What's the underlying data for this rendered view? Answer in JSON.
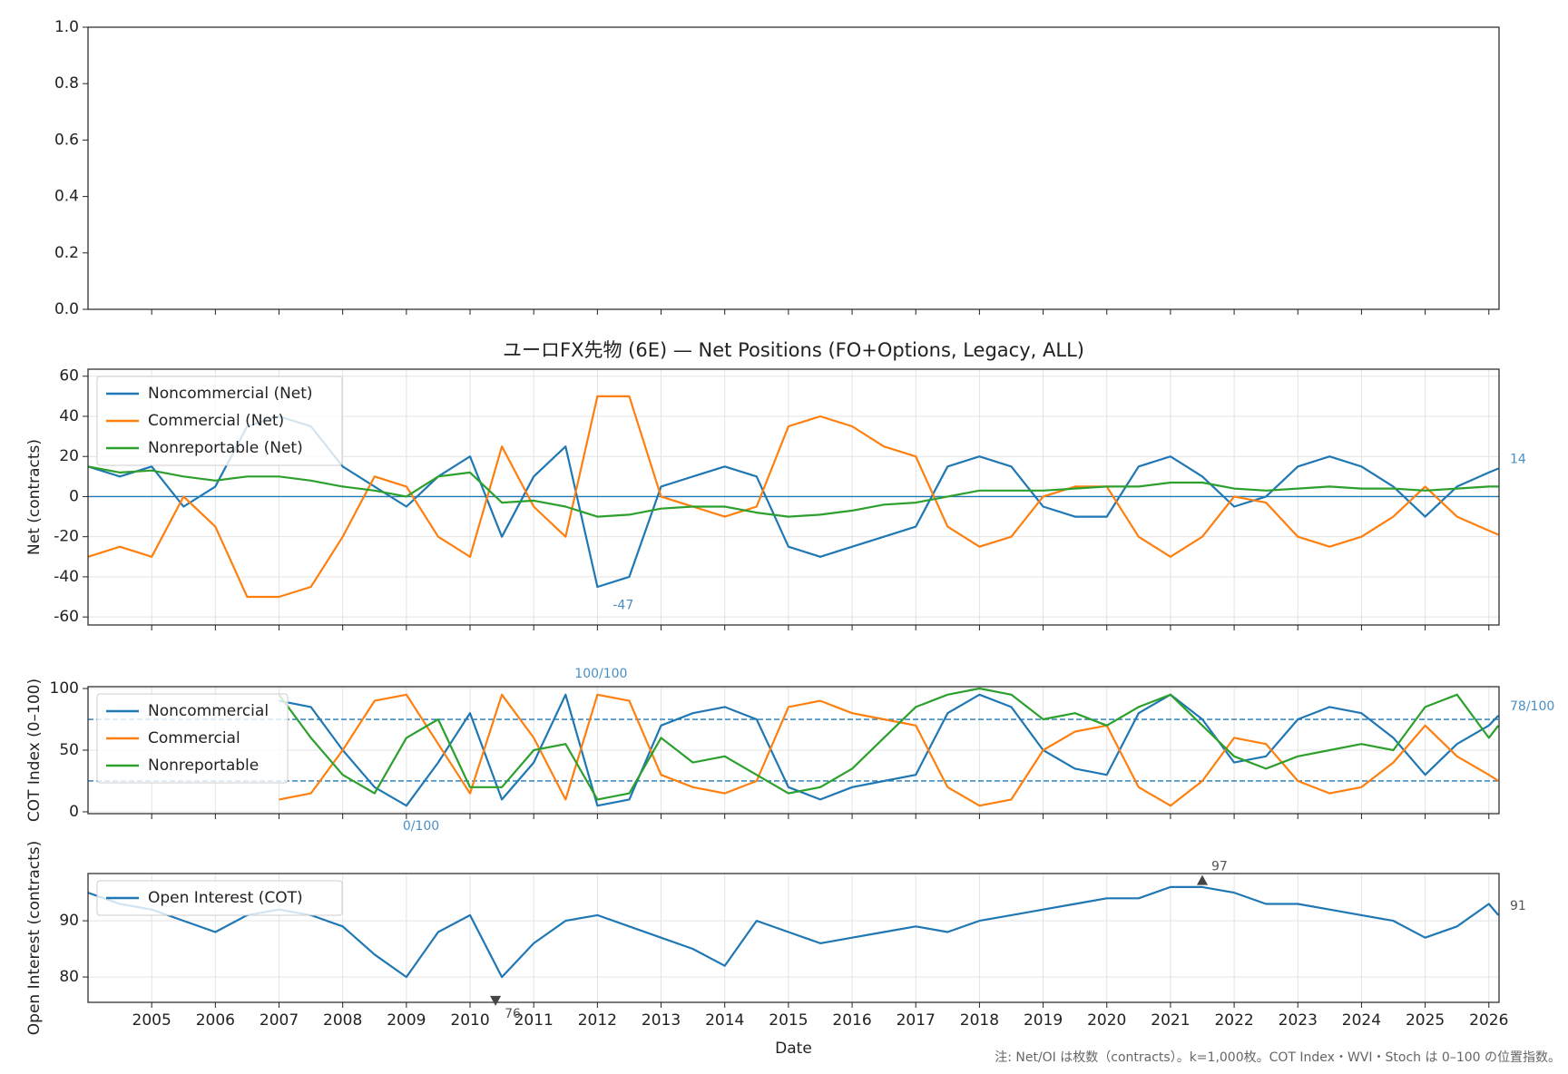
{
  "chart_data": [
    {
      "type": "line",
      "xlim": [
        2004.0,
        2026.16
      ],
      "ylim": [
        0,
        1
      ],
      "yticks": [
        {
          "value": 0,
          "label": "0.0"
        },
        {
          "value": 0.2,
          "label": "0.2"
        },
        {
          "value": 0.4,
          "label": "0.4"
        },
        {
          "value": 0.6,
          "label": "0.6"
        },
        {
          "value": 0.8,
          "label": "0.8"
        },
        {
          "value": 1,
          "label": "1.0"
        }
      ],
      "xticks": [
        2005,
        2006,
        2007,
        2008,
        2009,
        2010,
        2011,
        2012,
        2013,
        2014,
        2015,
        2016,
        2017,
        2018,
        2019,
        2020,
        2021,
        2022,
        2023,
        2024,
        2025,
        2026
      ],
      "grid": false,
      "series": []
    },
    {
      "type": "line",
      "title": "ユーロFX先物 (6E) — Net Positions (FO+Options, Legacy, ALL)",
      "ylabel": "Net (contracts)",
      "xlim": [
        2004.0,
        2026.16
      ],
      "ylim": [
        -64,
        63.5
      ],
      "yticks": [
        -60,
        -40,
        -20,
        0,
        20,
        40,
        60
      ],
      "xticks": [
        2005,
        2006,
        2007,
        2008,
        2009,
        2010,
        2011,
        2012,
        2013,
        2014,
        2015,
        2016,
        2017,
        2018,
        2019,
        2020,
        2021,
        2022,
        2023,
        2024,
        2025,
        2026
      ],
      "grid": true,
      "legend": "upper-left",
      "hlines": [
        {
          "y": 0,
          "style": "solid",
          "color": "#1f77b4"
        }
      ],
      "x": [
        2004.0,
        2004.5,
        2005.0,
        2005.5,
        2006.0,
        2006.5,
        2007.0,
        2007.5,
        2008.0,
        2008.5,
        2009.0,
        2009.5,
        2010.0,
        2010.5,
        2011.0,
        2011.5,
        2012.0,
        2012.5,
        2013.0,
        2013.5,
        2014.0,
        2014.5,
        2015.0,
        2015.5,
        2016.0,
        2016.5,
        2017.0,
        2017.5,
        2018.0,
        2018.5,
        2019.0,
        2019.5,
        2020.0,
        2020.5,
        2021.0,
        2021.5,
        2022.0,
        2022.5,
        2023.0,
        2023.5,
        2024.0,
        2024.5,
        2025.0,
        2025.5,
        2026.0,
        2026.15
      ],
      "series": [
        {
          "name": "Noncommercial (Net)",
          "color": "#1f77b4",
          "values": [
            15,
            10,
            15,
            -5,
            5,
            35,
            40,
            35,
            15,
            5,
            -5,
            10,
            20,
            -20,
            10,
            25,
            -45,
            -40,
            5,
            10,
            15,
            10,
            -25,
            -30,
            -25,
            -20,
            -15,
            15,
            20,
            15,
            -5,
            -10,
            -10,
            15,
            20,
            10,
            -5,
            0,
            15,
            20,
            15,
            5,
            -10,
            5,
            12,
            14
          ]
        },
        {
          "name": "Commercial (Net)",
          "color": "#ff7f0e",
          "values": [
            -30,
            -25,
            -30,
            0,
            -15,
            -50,
            -50,
            -45,
            -20,
            10,
            5,
            -20,
            -30,
            25,
            -5,
            -20,
            50,
            50,
            0,
            -5,
            -10,
            -5,
            35,
            40,
            35,
            25,
            20,
            -15,
            -25,
            -20,
            0,
            5,
            5,
            -20,
            -30,
            -20,
            0,
            -3,
            -20,
            -25,
            -20,
            -10,
            5,
            -10,
            -17,
            -19
          ]
        },
        {
          "name": "Nonreportable (Net)",
          "color": "#2ca02c",
          "values": [
            15,
            12,
            13,
            10,
            8,
            10,
            10,
            8,
            5,
            3,
            0,
            10,
            12,
            -3,
            -2,
            -5,
            -10,
            -9,
            -6,
            -5,
            -5,
            -8,
            -10,
            -9,
            -7,
            -4,
            -3,
            0,
            3,
            3,
            3,
            4,
            5,
            5,
            7,
            7,
            4,
            3,
            4,
            5,
            4,
            4,
            3,
            4,
            5,
            5
          ]
        }
      ],
      "annotations": [
        {
          "text": "14",
          "x": 2026.15,
          "y": 14,
          "color": "#4a8fc4"
        },
        {
          "text": "-47",
          "x": 2012.1,
          "y": -47,
          "color": "#4a8fc4"
        }
      ]
    },
    {
      "type": "line",
      "ylabel": "COT Index (0–100)",
      "xlim": [
        2004.0,
        2026.16
      ],
      "ylim": [
        -1.5,
        101.5
      ],
      "yticks": [
        0,
        50,
        100
      ],
      "xticks": [
        2005,
        2006,
        2007,
        2008,
        2009,
        2010,
        2011,
        2012,
        2013,
        2014,
        2015,
        2016,
        2017,
        2018,
        2019,
        2020,
        2021,
        2022,
        2023,
        2024,
        2025,
        2026
      ],
      "grid": true,
      "legend": "upper-left",
      "hlines": [
        {
          "y": 25,
          "style": "dashed",
          "color": "#1f77b4"
        },
        {
          "y": 75,
          "style": "dashed",
          "color": "#1f77b4"
        }
      ],
      "x": [
        2004.0,
        2004.5,
        2005.0,
        2005.5,
        2006.0,
        2006.5,
        2007.0,
        2007.5,
        2008.0,
        2008.5,
        2009.0,
        2009.5,
        2010.0,
        2010.5,
        2011.0,
        2011.5,
        2012.0,
        2012.5,
        2013.0,
        2013.5,
        2014.0,
        2014.5,
        2015.0,
        2015.5,
        2016.0,
        2016.5,
        2017.0,
        2017.5,
        2018.0,
        2018.5,
        2019.0,
        2019.5,
        2020.0,
        2020.5,
        2021.0,
        2021.5,
        2022.0,
        2022.5,
        2023.0,
        2023.5,
        2024.0,
        2024.5,
        2025.0,
        2025.5,
        2026.0,
        2026.15
      ],
      "series": [
        {
          "name": "Noncommercial",
          "color": "#1f77b4",
          "values": [
            null,
            null,
            null,
            null,
            null,
            null,
            90,
            85,
            50,
            20,
            5,
            40,
            80,
            10,
            40,
            95,
            5,
            10,
            70,
            80,
            85,
            75,
            20,
            10,
            20,
            25,
            30,
            80,
            95,
            85,
            50,
            35,
            30,
            80,
            95,
            75,
            40,
            45,
            75,
            85,
            80,
            60,
            30,
            55,
            70,
            78
          ]
        },
        {
          "name": "Commercial",
          "color": "#ff7f0e",
          "values": [
            null,
            null,
            null,
            null,
            null,
            null,
            10,
            15,
            50,
            90,
            95,
            55,
            15,
            95,
            60,
            10,
            95,
            90,
            30,
            20,
            15,
            25,
            85,
            90,
            80,
            75,
            70,
            20,
            5,
            10,
            50,
            65,
            70,
            20,
            5,
            25,
            60,
            55,
            25,
            15,
            20,
            40,
            70,
            45,
            30,
            25
          ]
        },
        {
          "name": "Nonreportable",
          "color": "#2ca02c",
          "values": [
            null,
            null,
            null,
            null,
            null,
            null,
            95,
            60,
            30,
            15,
            60,
            75,
            20,
            20,
            50,
            55,
            10,
            15,
            60,
            40,
            45,
            30,
            15,
            20,
            35,
            60,
            85,
            95,
            100,
            95,
            75,
            80,
            70,
            85,
            95,
            70,
            45,
            35,
            45,
            50,
            55,
            50,
            85,
            95,
            60,
            70
          ]
        }
      ],
      "annotations": [
        {
          "text": "100/100",
          "x": 2011.5,
          "y": 100,
          "color": "#4a8fc4"
        },
        {
          "text": "0/100",
          "x": 2008.8,
          "y": 0,
          "color": "#4a8fc4"
        },
        {
          "text": "78/100",
          "x": 2026.15,
          "y": 78,
          "color": "#4a8fc4"
        }
      ]
    },
    {
      "type": "line",
      "ylabel": "Open Interest (contracts)",
      "xlabel": "Date",
      "xlim": [
        2004.0,
        2026.16
      ],
      "ylim": [
        75.5,
        98.4
      ],
      "yticks": [
        80,
        90
      ],
      "xticks": [
        2005,
        2006,
        2007,
        2008,
        2009,
        2010,
        2011,
        2012,
        2013,
        2014,
        2015,
        2016,
        2017,
        2018,
        2019,
        2020,
        2021,
        2022,
        2023,
        2024,
        2025,
        2026
      ],
      "xticklabels": true,
      "grid": true,
      "legend": "upper-left",
      "x": [
        2004.0,
        2004.5,
        2005.0,
        2005.5,
        2006.0,
        2006.5,
        2007.0,
        2007.5,
        2008.0,
        2008.5,
        2009.0,
        2009.5,
        2010.0,
        2010.5,
        2011.0,
        2011.5,
        2012.0,
        2012.5,
        2013.0,
        2013.5,
        2014.0,
        2014.5,
        2015.0,
        2015.5,
        2016.0,
        2016.5,
        2017.0,
        2017.5,
        2018.0,
        2018.5,
        2019.0,
        2019.5,
        2020.0,
        2020.5,
        2021.0,
        2021.5,
        2022.0,
        2022.5,
        2023.0,
        2023.5,
        2024.0,
        2024.5,
        2025.0,
        2025.5,
        2026.0,
        2026.15
      ],
      "series": [
        {
          "name": "Open Interest (COT)",
          "color": "#1f77b4",
          "values": [
            95,
            93,
            92,
            90,
            88,
            91,
            92,
            91,
            89,
            84,
            80,
            88,
            91,
            80,
            86,
            90,
            91,
            89,
            87,
            85,
            82,
            90,
            88,
            86,
            87,
            88,
            89,
            88,
            90,
            91,
            92,
            93,
            94,
            94,
            96,
            96,
            95,
            93,
            93,
            92,
            91,
            90,
            87,
            89,
            93,
            91
          ]
        }
      ],
      "annotations": [
        {
          "text": "97",
          "x": 2021.5,
          "y": 97,
          "color": "#555555",
          "marker": "up"
        },
        {
          "text": "76",
          "x": 2010.4,
          "y": 76,
          "color": "#555555",
          "marker": "down"
        },
        {
          "text": "91",
          "x": 2026.15,
          "y": 91,
          "color": "#555555"
        }
      ]
    }
  ],
  "note": "注: Net/OI は枚数（contracts）。k=1,000枚。COT Index・WVI・Stoch は 0–100 の位置指数。"
}
